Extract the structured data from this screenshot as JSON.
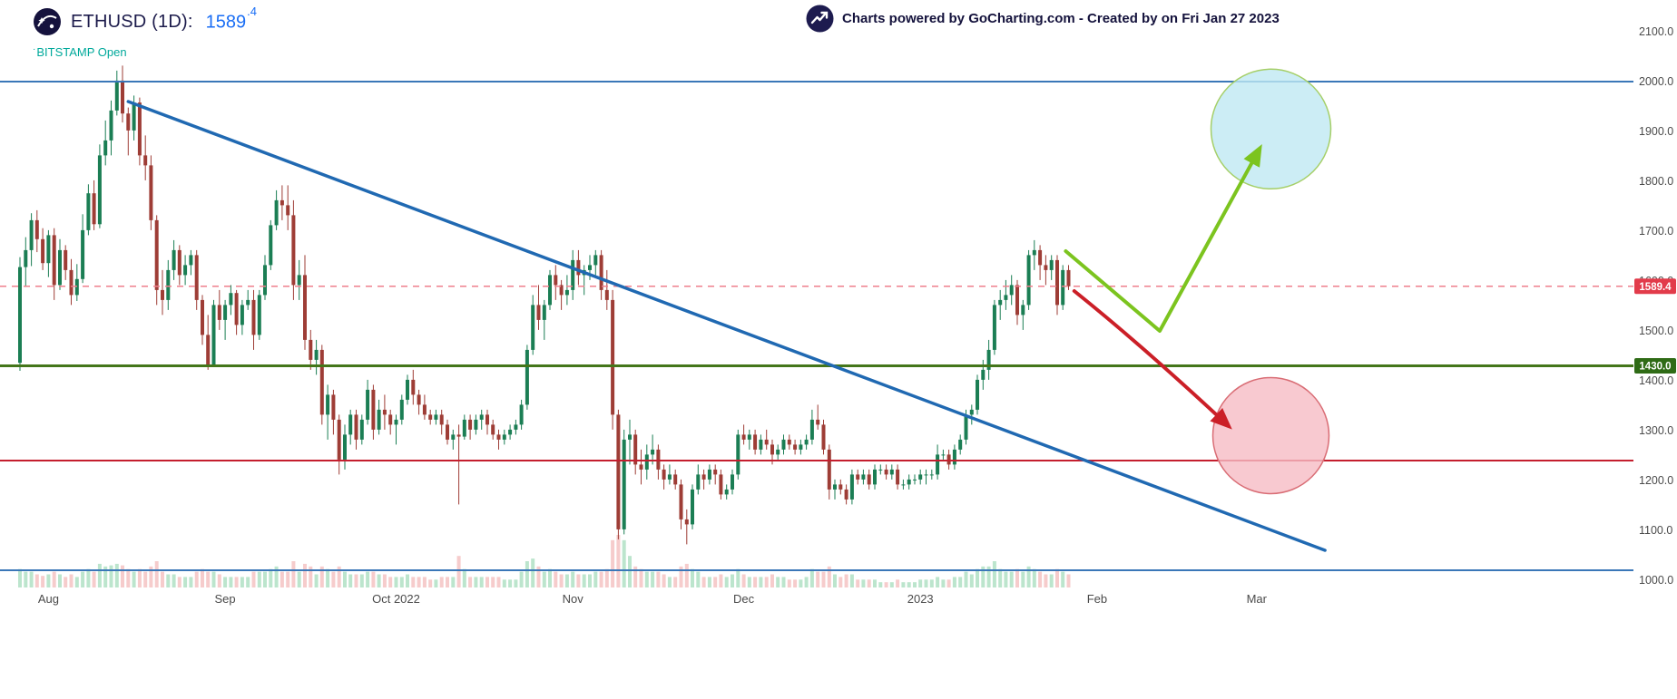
{
  "header": {
    "symbol_title": "ETHUSD (1D):",
    "price_main": "1589",
    "price_sup": ".4",
    "status_prefix": "·",
    "exchange_status": "BITSTAMP Open",
    "attribution": "Charts powered by GoCharting.com - Created by  on Fri Jan 27 2023"
  },
  "chart_data": {
    "type": "candlestick",
    "symbol": "ETHUSD",
    "interval": "1D",
    "exchange": "BITSTAMP",
    "last_price": 1589.4,
    "style": {
      "up_color": "#1b7e54",
      "down_color": "#9e3d36",
      "vol_up": "#b5e2c8",
      "vol_down": "#f5c6c6",
      "axis_text": "#4a4a4a"
    },
    "y_axis": {
      "min": 1000,
      "max": 2100,
      "step": 100
    },
    "x_axis": {
      "ticks": [
        {
          "label": "Aug",
          "i": 5
        },
        {
          "label": "Sep",
          "i": 36
        },
        {
          "label": "Oct 2022",
          "i": 66
        },
        {
          "label": "Nov",
          "i": 97
        },
        {
          "label": "Dec",
          "i": 127
        },
        {
          "label": "2023",
          "i": 158
        },
        {
          "label": "Feb",
          "i": 189
        },
        {
          "label": "Mar",
          "i": 217
        }
      ]
    },
    "start_date": "2022-07-27",
    "candles": [
      [
        1436,
        1648,
        1420,
        1628,
        0.35
      ],
      [
        1628,
        1688,
        1588,
        1662,
        0.3
      ],
      [
        1662,
        1736,
        1630,
        1722,
        0.3
      ],
      [
        1722,
        1742,
        1658,
        1684,
        0.25
      ],
      [
        1684,
        1706,
        1622,
        1636,
        0.22
      ],
      [
        1636,
        1702,
        1608,
        1692,
        0.25
      ],
      [
        1692,
        1706,
        1562,
        1592,
        0.3
      ],
      [
        1592,
        1684,
        1582,
        1662,
        0.25
      ],
      [
        1662,
        1672,
        1602,
        1622,
        0.2
      ],
      [
        1622,
        1644,
        1552,
        1572,
        0.25
      ],
      [
        1572,
        1634,
        1560,
        1604,
        0.2
      ],
      [
        1604,
        1734,
        1596,
        1702,
        0.3
      ],
      [
        1702,
        1794,
        1692,
        1776,
        0.35
      ],
      [
        1776,
        1802,
        1702,
        1714,
        0.3
      ],
      [
        1714,
        1874,
        1706,
        1852,
        0.45
      ],
      [
        1852,
        1922,
        1832,
        1882,
        0.4
      ],
      [
        1882,
        1962,
        1852,
        1942,
        0.42
      ],
      [
        1942,
        2022,
        1932,
        2002,
        0.45
      ],
      [
        2002,
        2032,
        1918,
        1936,
        0.42
      ],
      [
        1936,
        1948,
        1852,
        1902,
        0.35
      ],
      [
        1902,
        1972,
        1882,
        1958,
        0.3
      ],
      [
        1958,
        1968,
        1832,
        1852,
        0.35
      ],
      [
        1852,
        1892,
        1802,
        1832,
        0.3
      ],
      [
        1832,
        1852,
        1702,
        1722,
        0.4
      ],
      [
        1722,
        1732,
        1552,
        1582,
        0.5
      ],
      [
        1582,
        1622,
        1532,
        1562,
        0.3
      ],
      [
        1562,
        1642,
        1542,
        1622,
        0.25
      ],
      [
        1622,
        1682,
        1602,
        1662,
        0.25
      ],
      [
        1662,
        1672,
        1592,
        1612,
        0.2
      ],
      [
        1612,
        1652,
        1592,
        1632,
        0.2
      ],
      [
        1632,
        1662,
        1612,
        1652,
        0.2
      ],
      [
        1652,
        1662,
        1542,
        1562,
        0.3
      ],
      [
        1562,
        1572,
        1472,
        1492,
        0.35
      ],
      [
        1492,
        1532,
        1422,
        1432,
        0.3
      ],
      [
        1432,
        1562,
        1428,
        1552,
        0.3
      ],
      [
        1552,
        1582,
        1502,
        1522,
        0.25
      ],
      [
        1522,
        1562,
        1482,
        1552,
        0.2
      ],
      [
        1552,
        1592,
        1532,
        1576,
        0.2
      ],
      [
        1576,
        1582,
        1492,
        1512,
        0.2
      ],
      [
        1512,
        1562,
        1492,
        1552,
        0.2
      ],
      [
        1552,
        1582,
        1542,
        1562,
        0.2
      ],
      [
        1562,
        1582,
        1462,
        1492,
        0.3
      ],
      [
        1492,
        1582,
        1482,
        1572,
        0.3
      ],
      [
        1572,
        1652,
        1562,
        1632,
        0.3
      ],
      [
        1632,
        1722,
        1622,
        1712,
        0.35
      ],
      [
        1712,
        1782,
        1702,
        1762,
        0.4
      ],
      [
        1762,
        1792,
        1722,
        1752,
        0.3
      ],
      [
        1752,
        1792,
        1702,
        1732,
        0.3
      ],
      [
        1732,
        1762,
        1562,
        1592,
        0.5
      ],
      [
        1592,
        1642,
        1562,
        1612,
        0.3
      ],
      [
        1612,
        1652,
        1462,
        1482,
        0.45
      ],
      [
        1482,
        1502,
        1422,
        1442,
        0.4
      ],
      [
        1442,
        1482,
        1412,
        1462,
        0.25
      ],
      [
        1462,
        1472,
        1312,
        1332,
        0.4
      ],
      [
        1332,
        1392,
        1282,
        1372,
        0.35
      ],
      [
        1372,
        1382,
        1292,
        1322,
        0.3
      ],
      [
        1322,
        1332,
        1212,
        1242,
        0.4
      ],
      [
        1242,
        1312,
        1222,
        1292,
        0.3
      ],
      [
        1292,
        1342,
        1272,
        1332,
        0.25
      ],
      [
        1332,
        1342,
        1262,
        1282,
        0.25
      ],
      [
        1282,
        1332,
        1272,
        1322,
        0.25
      ],
      [
        1322,
        1402,
        1312,
        1382,
        0.3
      ],
      [
        1382,
        1392,
        1282,
        1302,
        0.3
      ],
      [
        1302,
        1362,
        1292,
        1342,
        0.25
      ],
      [
        1342,
        1372,
        1302,
        1332,
        0.25
      ],
      [
        1332,
        1342,
        1292,
        1312,
        0.2
      ],
      [
        1312,
        1332,
        1272,
        1322,
        0.2
      ],
      [
        1322,
        1372,
        1312,
        1362,
        0.2
      ],
      [
        1362,
        1412,
        1352,
        1402,
        0.25
      ],
      [
        1402,
        1422,
        1352,
        1372,
        0.2
      ],
      [
        1372,
        1382,
        1332,
        1352,
        0.2
      ],
      [
        1352,
        1372,
        1322,
        1332,
        0.2
      ],
      [
        1332,
        1342,
        1312,
        1322,
        0.15
      ],
      [
        1322,
        1342,
        1312,
        1332,
        0.15
      ],
      [
        1332,
        1342,
        1292,
        1312,
        0.2
      ],
      [
        1312,
        1322,
        1272,
        1282,
        0.2
      ],
      [
        1282,
        1302,
        1262,
        1292,
        0.2
      ],
      [
        1292,
        1312,
        1152,
        1288,
        0.6
      ],
      [
        1288,
        1332,
        1282,
        1322,
        0.35
      ],
      [
        1322,
        1332,
        1282,
        1302,
        0.2
      ],
      [
        1302,
        1332,
        1292,
        1322,
        0.2
      ],
      [
        1322,
        1342,
        1302,
        1332,
        0.2
      ],
      [
        1332,
        1342,
        1292,
        1312,
        0.2
      ],
      [
        1312,
        1322,
        1282,
        1292,
        0.2
      ],
      [
        1292,
        1302,
        1262,
        1282,
        0.2
      ],
      [
        1282,
        1302,
        1272,
        1292,
        0.15
      ],
      [
        1292,
        1312,
        1282,
        1302,
        0.15
      ],
      [
        1302,
        1322,
        1292,
        1312,
        0.15
      ],
      [
        1312,
        1362,
        1302,
        1352,
        0.3
      ],
      [
        1352,
        1472,
        1342,
        1462,
        0.5
      ],
      [
        1462,
        1572,
        1452,
        1552,
        0.55
      ],
      [
        1552,
        1592,
        1502,
        1522,
        0.4
      ],
      [
        1522,
        1562,
        1482,
        1552,
        0.3
      ],
      [
        1552,
        1622,
        1542,
        1612,
        0.35
      ],
      [
        1612,
        1632,
        1562,
        1592,
        0.3
      ],
      [
        1592,
        1602,
        1542,
        1572,
        0.25
      ],
      [
        1572,
        1612,
        1552,
        1582,
        0.25
      ],
      [
        1582,
        1662,
        1562,
        1642,
        0.3
      ],
      [
        1642,
        1662,
        1592,
        1612,
        0.25
      ],
      [
        1612,
        1632,
        1572,
        1622,
        0.25
      ],
      [
        1622,
        1652,
        1602,
        1632,
        0.25
      ],
      [
        1632,
        1662,
        1612,
        1652,
        0.3
      ],
      [
        1652,
        1662,
        1562,
        1582,
        0.3
      ],
      [
        1582,
        1622,
        1542,
        1562,
        0.35
      ],
      [
        1562,
        1582,
        1302,
        1332,
        0.9
      ],
      [
        1332,
        1342,
        1082,
        1102,
        1.0
      ],
      [
        1102,
        1302,
        1092,
        1282,
        0.9
      ],
      [
        1282,
        1322,
        1232,
        1292,
        0.6
      ],
      [
        1292,
        1302,
        1212,
        1232,
        0.4
      ],
      [
        1232,
        1262,
        1192,
        1222,
        0.35
      ],
      [
        1222,
        1272,
        1202,
        1252,
        0.3
      ],
      [
        1252,
        1292,
        1232,
        1262,
        0.3
      ],
      [
        1262,
        1272,
        1202,
        1222,
        0.3
      ],
      [
        1222,
        1232,
        1182,
        1202,
        0.25
      ],
      [
        1202,
        1232,
        1192,
        1212,
        0.2
      ],
      [
        1212,
        1222,
        1182,
        1192,
        0.2
      ],
      [
        1192,
        1202,
        1102,
        1122,
        0.4
      ],
      [
        1122,
        1142,
        1072,
        1112,
        0.45
      ],
      [
        1112,
        1192,
        1102,
        1182,
        0.35
      ],
      [
        1182,
        1232,
        1172,
        1212,
        0.3
      ],
      [
        1212,
        1222,
        1182,
        1202,
        0.2
      ],
      [
        1202,
        1232,
        1192,
        1222,
        0.2
      ],
      [
        1222,
        1232,
        1192,
        1212,
        0.2
      ],
      [
        1212,
        1222,
        1162,
        1172,
        0.25
      ],
      [
        1172,
        1192,
        1162,
        1182,
        0.2
      ],
      [
        1182,
        1222,
        1172,
        1212,
        0.25
      ],
      [
        1212,
        1302,
        1202,
        1292,
        0.35
      ],
      [
        1292,
        1312,
        1272,
        1282,
        0.25
      ],
      [
        1282,
        1302,
        1262,
        1292,
        0.2
      ],
      [
        1292,
        1302,
        1252,
        1262,
        0.2
      ],
      [
        1262,
        1292,
        1252,
        1282,
        0.2
      ],
      [
        1282,
        1302,
        1262,
        1272,
        0.2
      ],
      [
        1272,
        1282,
        1232,
        1252,
        0.25
      ],
      [
        1252,
        1272,
        1242,
        1262,
        0.2
      ],
      [
        1262,
        1292,
        1252,
        1282,
        0.2
      ],
      [
        1282,
        1292,
        1262,
        1272,
        0.15
      ],
      [
        1272,
        1282,
        1252,
        1262,
        0.15
      ],
      [
        1262,
        1282,
        1252,
        1272,
        0.15
      ],
      [
        1272,
        1292,
        1262,
        1282,
        0.2
      ],
      [
        1282,
        1342,
        1272,
        1322,
        0.35
      ],
      [
        1322,
        1352,
        1302,
        1312,
        0.3
      ],
      [
        1312,
        1322,
        1252,
        1262,
        0.3
      ],
      [
        1262,
        1272,
        1162,
        1182,
        0.4
      ],
      [
        1182,
        1202,
        1162,
        1192,
        0.25
      ],
      [
        1192,
        1202,
        1172,
        1182,
        0.2
      ],
      [
        1182,
        1192,
        1152,
        1162,
        0.25
      ],
      [
        1162,
        1222,
        1152,
        1212,
        0.25
      ],
      [
        1212,
        1222,
        1192,
        1202,
        0.15
      ],
      [
        1202,
        1222,
        1192,
        1212,
        0.15
      ],
      [
        1212,
        1222,
        1182,
        1192,
        0.15
      ],
      [
        1192,
        1232,
        1182,
        1222,
        0.15
      ],
      [
        1222,
        1232,
        1212,
        1222,
        0.1
      ],
      [
        1222,
        1232,
        1202,
        1212,
        0.1
      ],
      [
        1212,
        1232,
        1202,
        1222,
        0.1
      ],
      [
        1222,
        1232,
        1182,
        1192,
        0.15
      ],
      [
        1192,
        1202,
        1182,
        1192,
        0.1
      ],
      [
        1192,
        1212,
        1182,
        1202,
        0.1
      ],
      [
        1202,
        1212,
        1192,
        1202,
        0.1
      ],
      [
        1202,
        1222,
        1192,
        1212,
        0.15
      ],
      [
        1212,
        1222,
        1192,
        1212,
        0.15
      ],
      [
        1212,
        1222,
        1202,
        1212,
        0.15
      ],
      [
        1212,
        1272,
        1202,
        1252,
        0.2
      ],
      [
        1252,
        1262,
        1242,
        1252,
        0.15
      ],
      [
        1252,
        1262,
        1222,
        1232,
        0.15
      ],
      [
        1232,
        1272,
        1222,
        1262,
        0.2
      ],
      [
        1262,
        1292,
        1252,
        1282,
        0.2
      ],
      [
        1282,
        1342,
        1272,
        1332,
        0.3
      ],
      [
        1332,
        1352,
        1312,
        1342,
        0.25
      ],
      [
        1342,
        1412,
        1332,
        1402,
        0.35
      ],
      [
        1402,
        1442,
        1382,
        1422,
        0.4
      ],
      [
        1422,
        1482,
        1402,
        1462,
        0.4
      ],
      [
        1462,
        1562,
        1452,
        1552,
        0.5
      ],
      [
        1552,
        1582,
        1522,
        1562,
        0.35
      ],
      [
        1562,
        1602,
        1542,
        1572,
        0.3
      ],
      [
        1572,
        1612,
        1552,
        1592,
        0.3
      ],
      [
        1592,
        1602,
        1512,
        1532,
        0.35
      ],
      [
        1532,
        1562,
        1502,
        1552,
        0.3
      ],
      [
        1552,
        1662,
        1542,
        1652,
        0.4
      ],
      [
        1652,
        1682,
        1622,
        1662,
        0.35
      ],
      [
        1662,
        1672,
        1602,
        1632,
        0.3
      ],
      [
        1632,
        1652,
        1592,
        1622,
        0.25
      ],
      [
        1622,
        1652,
        1602,
        1642,
        0.25
      ],
      [
        1642,
        1652,
        1532,
        1552,
        0.35
      ],
      [
        1552,
        1632,
        1542,
        1622,
        0.3
      ],
      [
        1622,
        1632,
        1582,
        1589.4,
        0.25
      ]
    ],
    "levels": [
      {
        "price": 2000,
        "color": "#3a77b8",
        "width": 2
      },
      {
        "price": 1430,
        "color": "#44761a",
        "width": 3,
        "label": "1430.0",
        "label_bg": "#2f6b16"
      },
      {
        "price": 1240,
        "color": "#c41e2e",
        "width": 2
      },
      {
        "price": 1020,
        "color": "#3a77b8",
        "width": 2
      }
    ],
    "current_price_line": {
      "price": 1589.4,
      "color": "#ef7f8c",
      "label": "1589.4",
      "label_bg": "#e23b4a"
    },
    "trendline": {
      "from": {
        "i": 19,
        "p": 1960
      },
      "to": {
        "i": 229,
        "p": 1060
      },
      "color": "#2069b2",
      "width": 3.5
    },
    "green_path": {
      "points": [
        {
          "i": 183.5,
          "p": 1660
        },
        {
          "i": 200,
          "p": 1500
        },
        {
          "i": 217.5,
          "p": 1865
        }
      ],
      "color": "#7cc41f",
      "width": 4
    },
    "red_arrow": {
      "from": {
        "i": 185,
        "p": 1580
      },
      "ctrl": {
        "i": 197,
        "p": 1470
      },
      "to": {
        "i": 212,
        "p": 1310
      },
      "color": "#cb1f27",
      "width": 4
    },
    "circles": [
      {
        "i": 219.5,
        "p": 1905,
        "r": 66,
        "fill": "#bfe9f2",
        "fill_opacity": 0.8,
        "stroke": "#a5cf68"
      },
      {
        "i": 219.5,
        "p": 1290,
        "r": 64,
        "fill": "#f6bcc4",
        "fill_opacity": 0.8,
        "stroke": "#d96d75"
      }
    ]
  }
}
